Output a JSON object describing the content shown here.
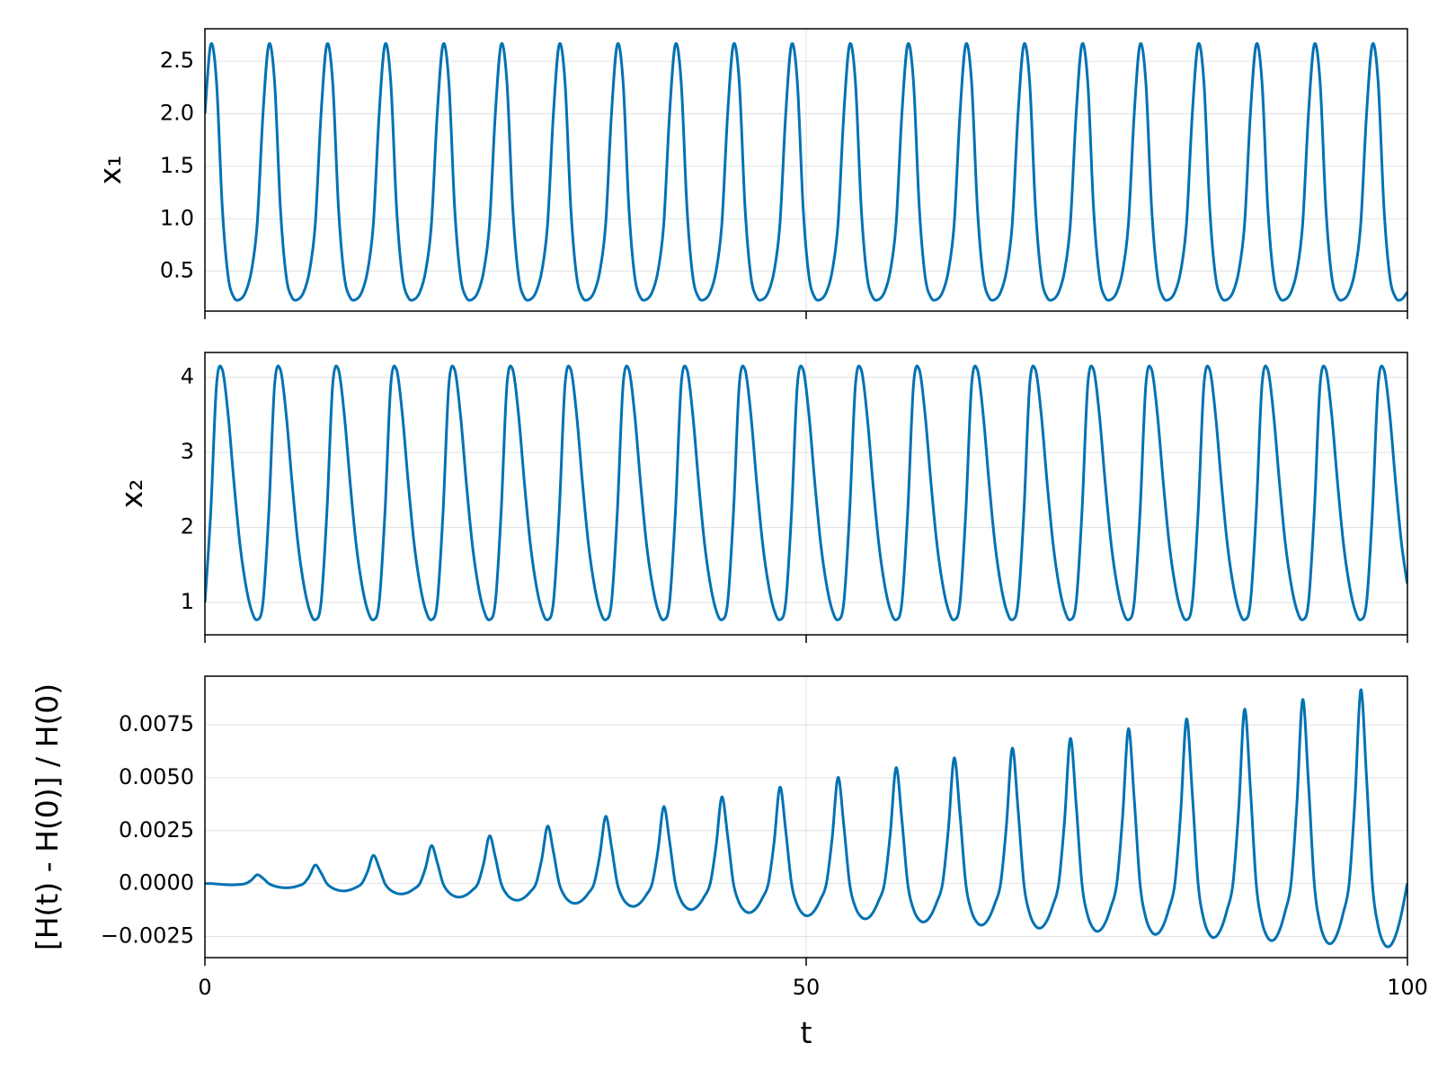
{
  "chart_data": {
    "type": "line",
    "color": "#0072b2",
    "grid": true,
    "xlabel": "t",
    "xlim": [
      0,
      100
    ],
    "xticks": [
      0,
      50,
      100
    ],
    "x": [
      0,
      0.483,
      0.966,
      1.449,
      1.932,
      2.415,
      2.898,
      3.381,
      3.864,
      4.347,
      4.83,
      5.313,
      5.796,
      6.279,
      6.762,
      7.245,
      7.728,
      8.211,
      8.694,
      9.177,
      9.66,
      10.143,
      10.626,
      11.109,
      11.592,
      12.075,
      12.558,
      13.041,
      13.524,
      14.007,
      14.49,
      14.973,
      15.456,
      15.939,
      16.422,
      16.905,
      17.388,
      17.871,
      18.354,
      18.837,
      19.32,
      19.803,
      20.286,
      20.769,
      21.252,
      21.735,
      22.218,
      22.701,
      23.184,
      23.667,
      24.15,
      24.633,
      25.116,
      25.599,
      26.082,
      26.565,
      27.048,
      27.531,
      28.014,
      28.497,
      28.98,
      29.463,
      29.946,
      30.429,
      30.912,
      31.395,
      31.878,
      32.361,
      32.844,
      33.327,
      33.81,
      34.293,
      34.776,
      35.259,
      35.742,
      36.225,
      36.708,
      37.191,
      37.674,
      38.157,
      38.64,
      39.123,
      39.606,
      40.089,
      40.572,
      41.055,
      41.538,
      42.021,
      42.504,
      42.987,
      43.47,
      43.953,
      44.436,
      44.919,
      45.402,
      45.885,
      46.368,
      46.851,
      47.334,
      47.817,
      48.3,
      48.783,
      49.266,
      49.749,
      50.232,
      50.715,
      51.198,
      51.681,
      52.164,
      52.647,
      53.13,
      53.613,
      54.096,
      54.579,
      55.062,
      55.545,
      56.028,
      56.511,
      56.994,
      57.477,
      57.96,
      58.443,
      58.926,
      59.409,
      59.892,
      60.375,
      60.858,
      61.341,
      61.824,
      62.307,
      62.79,
      63.273,
      63.756,
      64.239,
      64.722,
      65.205,
      65.688,
      66.171,
      66.654,
      67.137,
      67.62,
      68.103,
      68.586,
      69.069,
      69.552,
      70.035,
      70.518,
      71.001,
      71.484,
      71.967,
      72.45,
      72.933,
      73.416,
      73.899,
      74.382,
      74.865,
      75.348,
      75.831,
      76.314,
      76.797,
      77.28,
      77.763,
      78.246,
      78.729,
      79.212,
      79.695,
      80.178,
      80.661,
      81.144,
      81.627,
      82.11,
      82.593,
      83.076,
      83.559,
      84.042,
      84.525,
      85.008,
      85.491,
      85.974,
      86.457,
      86.94,
      87.423,
      87.906,
      88.389,
      88.872,
      89.355,
      89.838,
      90.321,
      90.804,
      91.287,
      91.77,
      92.253,
      92.736,
      93.219,
      93.702,
      94.185,
      94.668,
      95.151,
      95.634,
      96.117,
      96.6,
      97.083,
      97.566,
      98.049,
      98.532,
      99.015,
      99.498,
      99.981
    ],
    "panels": [
      {
        "ylabel": "x₁",
        "ylim": [
          0.12,
          2.81
        ],
        "yticks": [
          0.5,
          {
            "value": 1.0,
            "label": "1.0"
          },
          1.5,
          {
            "value": 2.0,
            "label": "2.0"
          },
          2.5
        ],
        "values": [
          2.0,
          2.66,
          2.3,
          1.1,
          0.45,
          0.25,
          0.23,
          0.3,
          0.5,
          0.95,
          2.0,
          2.66,
          2.3,
          1.1,
          0.45,
          0.25,
          0.23,
          0.3,
          0.5,
          0.95,
          2.0,
          2.66,
          2.3,
          1.1,
          0.45,
          0.25,
          0.23,
          0.3,
          0.5,
          0.95,
          2.0,
          2.66,
          2.3,
          1.1,
          0.45,
          0.25,
          0.23,
          0.3,
          0.5,
          0.95,
          2.0,
          2.66,
          2.3,
          1.1,
          0.45,
          0.25,
          0.23,
          0.3,
          0.5,
          0.95,
          2.0,
          2.66,
          2.3,
          1.1,
          0.45,
          0.25,
          0.23,
          0.3,
          0.5,
          0.95,
          2.0,
          2.66,
          2.3,
          1.1,
          0.45,
          0.25,
          0.23,
          0.3,
          0.5,
          0.95,
          2.0,
          2.66,
          2.3,
          1.1,
          0.45,
          0.25,
          0.23,
          0.3,
          0.5,
          0.95,
          2.0,
          2.66,
          2.3,
          1.1,
          0.45,
          0.25,
          0.23,
          0.3,
          0.5,
          0.95,
          2.0,
          2.66,
          2.3,
          1.1,
          0.45,
          0.25,
          0.23,
          0.3,
          0.5,
          0.95,
          2.0,
          2.66,
          2.3,
          1.1,
          0.45,
          0.25,
          0.23,
          0.3,
          0.5,
          0.95,
          2.0,
          2.66,
          2.3,
          1.1,
          0.45,
          0.25,
          0.23,
          0.3,
          0.5,
          0.95,
          2.0,
          2.66,
          2.3,
          1.1,
          0.45,
          0.25,
          0.23,
          0.3,
          0.5,
          0.95,
          2.0,
          2.66,
          2.3,
          1.1,
          0.45,
          0.25,
          0.23,
          0.3,
          0.5,
          0.95,
          2.0,
          2.66,
          2.3,
          1.1,
          0.45,
          0.25,
          0.23,
          0.3,
          0.5,
          0.95,
          2.0,
          2.66,
          2.3,
          1.1,
          0.45,
          0.25,
          0.23,
          0.3,
          0.5,
          0.95,
          2.0,
          2.66,
          2.3,
          1.1,
          0.45,
          0.25,
          0.23,
          0.3,
          0.5,
          0.95,
          2.0,
          2.66,
          2.3,
          1.1,
          0.45,
          0.25,
          0.23,
          0.3,
          0.5,
          0.95,
          2.0,
          2.66,
          2.3,
          1.1,
          0.45,
          0.25,
          0.23,
          0.3,
          0.5,
          0.95,
          2.0,
          2.66,
          2.3,
          1.1,
          0.45,
          0.25,
          0.23,
          0.3,
          0.5,
          0.95,
          2.0,
          2.66,
          2.3,
          1.1,
          0.45,
          0.25,
          0.23,
          0.3
        ]
      },
      {
        "ylabel": "x₂",
        "ylim": [
          0.57,
          4.33
        ],
        "yticks": [
          1,
          2,
          3,
          4
        ],
        "values": [
          1.0,
          2.2,
          3.9,
          4.1,
          3.5,
          2.6,
          1.8,
          1.25,
          0.9,
          0.77,
          1.0,
          2.2,
          3.9,
          4.1,
          3.5,
          2.6,
          1.8,
          1.25,
          0.9,
          0.77,
          1.0,
          2.2,
          3.9,
          4.1,
          3.5,
          2.6,
          1.8,
          1.25,
          0.9,
          0.77,
          1.0,
          2.2,
          3.9,
          4.1,
          3.5,
          2.6,
          1.8,
          1.25,
          0.9,
          0.77,
          1.0,
          2.2,
          3.9,
          4.1,
          3.5,
          2.6,
          1.8,
          1.25,
          0.9,
          0.77,
          1.0,
          2.2,
          3.9,
          4.1,
          3.5,
          2.6,
          1.8,
          1.25,
          0.9,
          0.77,
          1.0,
          2.2,
          3.9,
          4.1,
          3.5,
          2.6,
          1.8,
          1.25,
          0.9,
          0.77,
          1.0,
          2.2,
          3.9,
          4.1,
          3.5,
          2.6,
          1.8,
          1.25,
          0.9,
          0.77,
          1.0,
          2.2,
          3.9,
          4.1,
          3.5,
          2.6,
          1.8,
          1.25,
          0.9,
          0.77,
          1.0,
          2.2,
          3.9,
          4.1,
          3.5,
          2.6,
          1.8,
          1.25,
          0.9,
          0.77,
          1.0,
          2.2,
          3.9,
          4.1,
          3.5,
          2.6,
          1.8,
          1.25,
          0.9,
          0.77,
          1.0,
          2.2,
          3.9,
          4.1,
          3.5,
          2.6,
          1.8,
          1.25,
          0.9,
          0.77,
          1.0,
          2.2,
          3.9,
          4.1,
          3.5,
          2.6,
          1.8,
          1.25,
          0.9,
          0.77,
          1.0,
          2.2,
          3.9,
          4.1,
          3.5,
          2.6,
          1.8,
          1.25,
          0.9,
          0.77,
          1.0,
          2.2,
          3.9,
          4.1,
          3.5,
          2.6,
          1.8,
          1.25,
          0.9,
          0.77,
          1.0,
          2.2,
          3.9,
          4.1,
          3.5,
          2.6,
          1.8,
          1.25,
          0.9,
          0.77,
          1.0,
          2.2,
          3.9,
          4.1,
          3.5,
          2.6,
          1.8,
          1.25,
          0.9,
          0.77,
          1.0,
          2.2,
          3.9,
          4.1,
          3.5,
          2.6,
          1.8,
          1.25,
          0.9,
          0.77,
          1.0,
          2.2,
          3.9,
          4.1,
          3.5,
          2.6,
          1.8,
          1.25,
          0.9,
          0.77,
          1.0,
          2.2,
          3.9,
          4.1,
          3.5,
          2.6,
          1.8,
          1.25,
          0.9,
          0.77,
          1.0,
          2.2,
          3.9,
          4.1,
          3.5,
          2.6,
          1.8,
          1.25
        ]
      },
      {
        "ylabel": "[H(t) - H(0)] / H(0)",
        "ylim": [
          -0.0035,
          0.0098
        ],
        "yticks": [
          {
            "value": -0.0025,
            "label": "−0.0025"
          },
          {
            "value": 0,
            "label": "0.0000"
          },
          {
            "value": 0.0025,
            "label": "0.0025"
          },
          {
            "value": 0.005,
            "label": "0.0050"
          },
          {
            "value": 0.0075,
            "label": "0.0075"
          }
        ],
        "values": [
          0,
          0,
          -2e-05,
          -4.2e-05,
          -5.8e-05,
          -6e-05,
          -4.2e-05,
          0,
          0.00016,
          0.000414,
          0.00025,
          0,
          -0.00012,
          -0.000182,
          -0.000203,
          -0.00018,
          -0.000112,
          0,
          0.00036,
          0.000874,
          0.0005,
          0,
          -0.00022,
          -0.000322,
          -0.000348,
          -0.0003,
          -0.000182,
          0,
          0.00056,
          0.001334,
          0.00075,
          0,
          -0.00032,
          -0.000462,
          -0.000493,
          -0.00042,
          -0.000252,
          0,
          0.00076,
          0.001794,
          0.001,
          0,
          -0.00042,
          -0.000602,
          -0.000638,
          -0.00054,
          -0.000322,
          0,
          0.00096,
          0.002254,
          0.00125,
          0,
          -0.00052,
          -0.000742,
          -0.000783,
          -0.00066,
          -0.000392,
          0,
          0.00116,
          0.002714,
          0.0015,
          0,
          -0.00062,
          -0.000882,
          -0.000928,
          -0.00078,
          -0.000462,
          0,
          0.00136,
          0.003174,
          0.00175,
          0,
          -0.00072,
          -0.001022,
          -0.001073,
          -0.0009,
          -0.000532,
          0,
          0.00156,
          0.003634,
          0.002,
          0,
          -0.00082,
          -0.001162,
          -0.001218,
          -0.00102,
          -0.000602,
          0,
          0.00176,
          0.004094,
          0.00225,
          0,
          -0.00092,
          -0.001302,
          -0.001363,
          -0.00114,
          -0.000672,
          0,
          0.00196,
          0.004554,
          0.0025,
          0,
          -0.00102,
          -0.001442,
          -0.001508,
          -0.00126,
          -0.000742,
          0,
          0.00216,
          0.005014,
          0.00275,
          0,
          -0.00112,
          -0.001582,
          -0.001653,
          -0.00138,
          -0.000812,
          0,
          0.00236,
          0.005474,
          0.003,
          0,
          -0.00122,
          -0.001722,
          -0.001798,
          -0.0015,
          -0.000882,
          0,
          0.00256,
          0.005934,
          0.00325,
          0,
          -0.00132,
          -0.001862,
          -0.001943,
          -0.00162,
          -0.000952,
          0,
          0.00276,
          0.006394,
          0.0035,
          0,
          -0.00142,
          -0.002002,
          -0.002088,
          -0.00174,
          -0.001022,
          0,
          0.00296,
          0.006854,
          0.00375,
          0,
          -0.00152,
          -0.002142,
          -0.002233,
          -0.00186,
          -0.001092,
          0,
          0.00316,
          0.007314,
          0.004,
          0,
          -0.00162,
          -0.002282,
          -0.002378,
          -0.00198,
          -0.001162,
          0,
          0.00336,
          0.007774,
          0.00425,
          0,
          -0.00172,
          -0.002422,
          -0.002523,
          -0.0021,
          -0.001232,
          0,
          0.00356,
          0.008234,
          0.0045,
          0,
          -0.00182,
          -0.002562,
          -0.002668,
          -0.00222,
          -0.001302,
          0,
          0.00376,
          0.008694,
          0.00475,
          0,
          -0.00192,
          -0.002702,
          -0.002813,
          -0.00234,
          -0.001372,
          0,
          0.00396,
          0.009154,
          0.005,
          0,
          -0.00202,
          -0.002842,
          -0.002958,
          -0.00246,
          -0.001442,
          0
        ]
      }
    ]
  }
}
